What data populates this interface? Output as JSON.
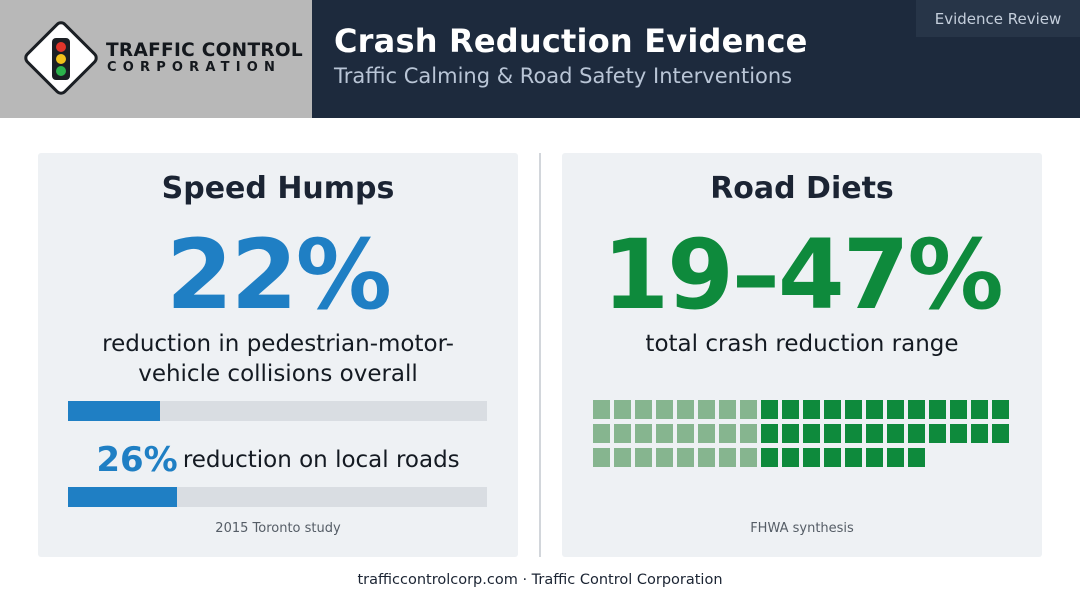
{
  "header": {
    "brand_line1": "TRAFFIC CONTROL",
    "brand_line2": "CORPORATION",
    "logo_icon": "traffic-light-icon",
    "title": "Crash Reduction Evidence",
    "subtitle": "Traffic Calming & Road Safety Interventions",
    "badge": "Evidence Review"
  },
  "speed_humps": {
    "heading": "Speed Humps",
    "big_stat": "22%",
    "description": "reduction in pedestrian-motor-vehicle collisions overall",
    "overall_bar_fraction": 0.22,
    "local_stat": "26%",
    "local_text": "reduction on local roads",
    "local_bar_fraction": 0.26,
    "source": "2015 Toronto study"
  },
  "road_diets": {
    "heading": "Road Diets",
    "big_stat": "19–47%",
    "description": "total crash reduction range",
    "waffle_lower_pct": 19,
    "waffle_upper_pct": 47,
    "source": "FHWA synthesis"
  },
  "colors": {
    "header_dark": "#1d2a3d",
    "brand_gray": "#b8b8b8",
    "blue_accent": "#1f7fc4",
    "green_accent": "#0e8a3c",
    "green_light": "#86b58f",
    "panel_bg": "#eef1f4"
  },
  "footer": {
    "text": "trafficcontrolcorp.com · Traffic Control Corporation"
  }
}
